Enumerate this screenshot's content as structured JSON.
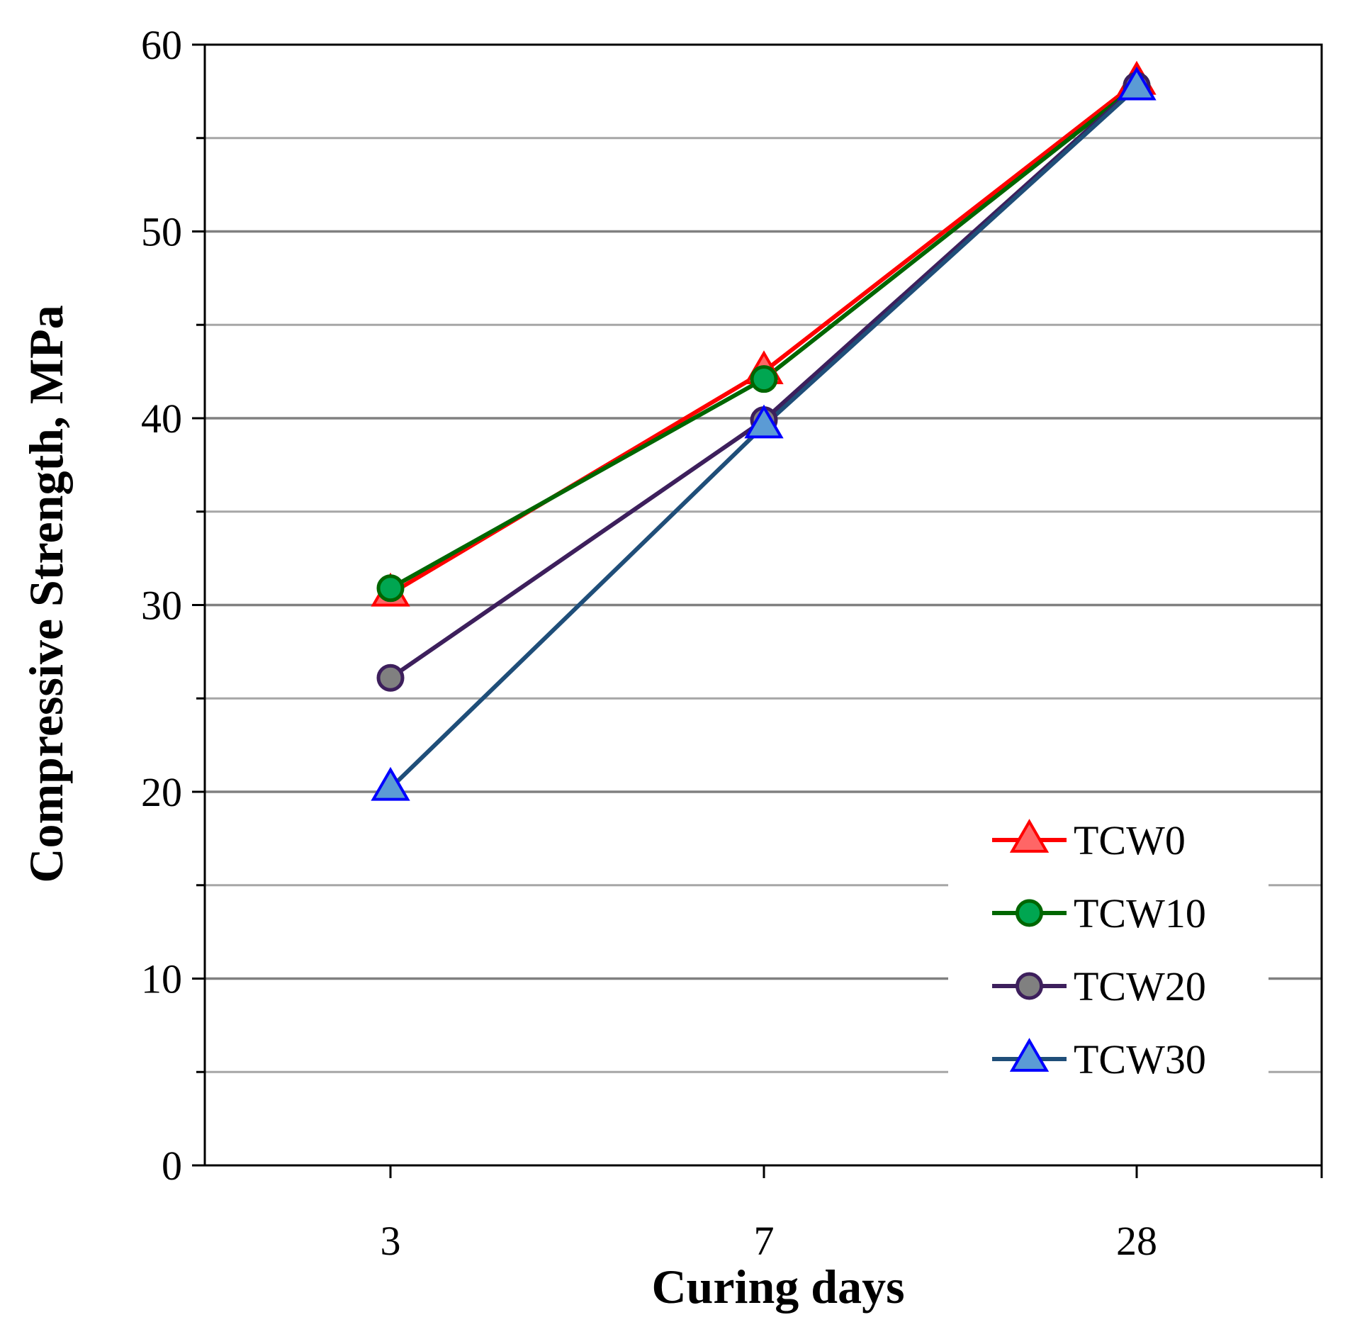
{
  "chart_data": {
    "type": "line",
    "title": "",
    "xlabel": "Curing days",
    "ylabel": "Compressive Strength, MPa",
    "categories": [
      "3",
      "7",
      "28"
    ],
    "ylim": [
      0,
      60
    ],
    "y_major_ticks": [
      0,
      10,
      20,
      30,
      40,
      50,
      60
    ],
    "y_minor_ticks": [
      5,
      15,
      25,
      35,
      45,
      55
    ],
    "grid": true,
    "legend_position": "bottom-right",
    "series": [
      {
        "name": "TCW0",
        "values": [
          30.6,
          42.5,
          58.0
        ],
        "line_color": "#ff0000",
        "marker": "triangle",
        "marker_fill": "#ff6666",
        "marker_stroke": "#ff0000"
      },
      {
        "name": "TCW10",
        "values": [
          30.9,
          42.1,
          57.8
        ],
        "line_color": "#006600",
        "marker": "circle",
        "marker_fill": "#00a651",
        "marker_stroke": "#006600"
      },
      {
        "name": "TCW20",
        "values": [
          26.1,
          39.9,
          57.8
        ],
        "line_color": "#3d1f5c",
        "marker": "circle",
        "marker_fill": "#808080",
        "marker_stroke": "#3d1f5c"
      },
      {
        "name": "TCW30",
        "values": [
          20.2,
          39.6,
          57.7
        ],
        "line_color": "#1f4e79",
        "marker": "triangle",
        "marker_fill": "#5b9bd5",
        "marker_stroke": "#0000ff"
      }
    ]
  }
}
